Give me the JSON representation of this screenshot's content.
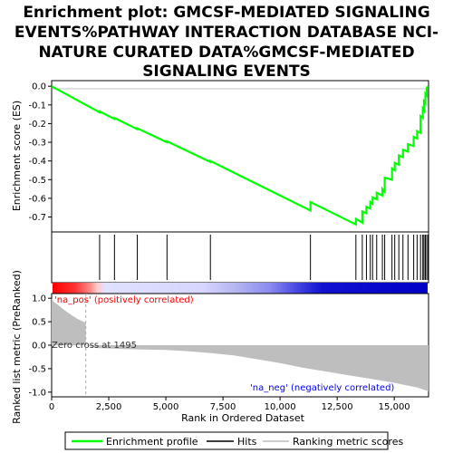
{
  "title_lines": [
    "Enrichment plot: GMCSF-MEDIATED SIGNALING",
    "EVENTS%PATHWAY INTERACTION DATABASE NCI-",
    "NATURE CURATED DATA%GMCSF-MEDIATED",
    "SIGNALING EVENTS"
  ],
  "colors": {
    "es_line": "#00ff00",
    "hits": "#000000",
    "metric_fill": "#bebebe",
    "pos_text": "#ff0000",
    "neg_text": "#0000ff",
    "zero_cross_line": "#aaaaaa"
  },
  "chart_data": [
    {
      "type": "line",
      "panel": "enrichment",
      "ylabel": "Enrichment score (ES)",
      "xlim": [
        0,
        16500
      ],
      "ylim": [
        -0.78,
        0.03
      ],
      "yticks": [
        0.0,
        -0.1,
        -0.2,
        -0.3,
        -0.4,
        -0.5,
        -0.6,
        -0.7
      ],
      "ytick_labels": [
        "0.0",
        "-0.1",
        "-0.2",
        "-0.3",
        "-0.4",
        "-0.5",
        "-0.6",
        "-0.7"
      ],
      "series": [
        {
          "name": "Enrichment profile",
          "x": [
            0,
            2100,
            2101,
            2750,
            2751,
            3750,
            3751,
            5050,
            5051,
            6950,
            6951,
            11330,
            11331,
            13320,
            13321,
            13600,
            13601,
            13780,
            13781,
            13950,
            13951,
            14050,
            14051,
            14230,
            14231,
            14480,
            14481,
            14580,
            14581,
            14900,
            14901,
            15020,
            15021,
            15200,
            15201,
            15380,
            15381,
            15600,
            15601,
            15850,
            15851,
            16000,
            16001,
            16150,
            16151,
            16250,
            16251,
            16300,
            16301,
            16360,
            16361,
            16420,
            16421,
            16480
          ],
          "y": [
            0.0,
            -0.14,
            -0.135,
            -0.175,
            -0.17,
            -0.23,
            -0.225,
            -0.3,
            -0.295,
            -0.405,
            -0.4,
            -0.665,
            -0.62,
            -0.74,
            -0.71,
            -0.73,
            -0.67,
            -0.68,
            -0.645,
            -0.655,
            -0.62,
            -0.63,
            -0.595,
            -0.605,
            -0.57,
            -0.585,
            -0.55,
            -0.565,
            -0.49,
            -0.5,
            -0.44,
            -0.45,
            -0.41,
            -0.42,
            -0.37,
            -0.38,
            -0.34,
            -0.35,
            -0.31,
            -0.32,
            -0.27,
            -0.28,
            -0.24,
            -0.25,
            -0.16,
            -0.17,
            -0.12,
            -0.13,
            -0.08,
            -0.09,
            -0.04,
            -0.05,
            -0.01,
            0.0
          ]
        }
      ]
    },
    {
      "type": "hits",
      "panel": "hits",
      "name": "Hits",
      "x": [
        2100,
        2750,
        3750,
        5050,
        6950,
        11330,
        13320,
        13600,
        13780,
        13950,
        14050,
        14230,
        14480,
        14580,
        14900,
        15020,
        15200,
        15380,
        15600,
        15850,
        16000,
        16150,
        16250,
        16300,
        16360,
        16420,
        16480
      ]
    },
    {
      "type": "area",
      "panel": "ranked_list",
      "name": "Ranking metric scores",
      "xlabel": "Rank in Ordered Dataset",
      "ylabel": "Ranked list metric (PreRanked)",
      "xlim": [
        0,
        16500
      ],
      "ylim": [
        -1.1,
        1.1
      ],
      "xticks": [
        0,
        2500,
        5000,
        7500,
        10000,
        12500,
        15000
      ],
      "xtick_labels": [
        "0",
        "2,500",
        "5,000",
        "7,500",
        "10,000",
        "12,500",
        "15,000"
      ],
      "yticks": [
        1.0,
        0.5,
        0.0,
        -0.5,
        -1.0
      ],
      "ytick_labels": [
        "1.0",
        "0.5",
        "0.0",
        "-0.5",
        "-1.0"
      ],
      "x": [
        0,
        100,
        300,
        500,
        700,
        900,
        1100,
        1300,
        1494,
        1495,
        2000,
        3000,
        4000,
        5000,
        6000,
        7000,
        8000,
        9000,
        10000,
        11000,
        12000,
        13000,
        14000,
        15000,
        15600,
        16000,
        16300,
        16500
      ],
      "y": [
        1.0,
        0.92,
        0.85,
        0.77,
        0.7,
        0.63,
        0.57,
        0.52,
        0.48,
        0.0,
        -0.06,
        -0.08,
        -0.09,
        -0.1,
        -0.13,
        -0.17,
        -0.22,
        -0.3,
        -0.38,
        -0.48,
        -0.56,
        -0.64,
        -0.72,
        -0.8,
        -0.86,
        -0.9,
        -0.95,
        -0.98
      ],
      "zero_cross_x": 1495,
      "annotations": {
        "pos": "'na_pos' (positively correlated)",
        "neg": "'na_neg' (negatively correlated)",
        "zero_cross": "Zero cross at 1495"
      }
    }
  ],
  "legend": {
    "items": [
      "Enrichment profile",
      "Hits",
      "Ranking metric scores"
    ],
    "placement": "bottom"
  }
}
